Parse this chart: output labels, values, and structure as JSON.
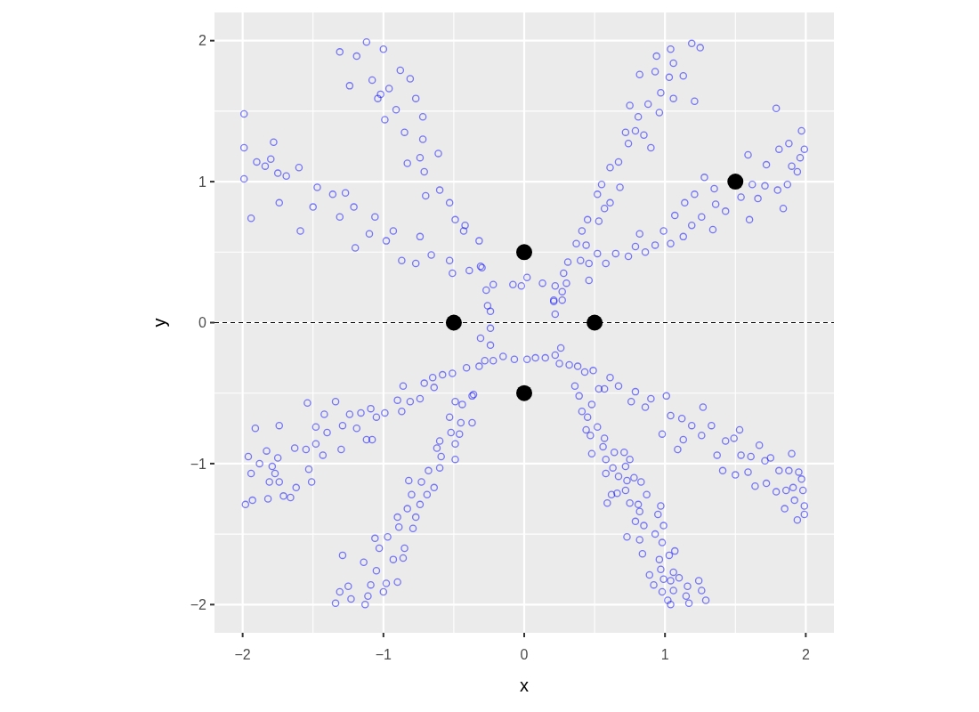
{
  "chart_data": {
    "type": "scatter",
    "xlabel": "x",
    "ylabel": "y",
    "xlim": [
      -2.2,
      2.2
    ],
    "ylim": [
      -2.2,
      2.2
    ],
    "xticks": [
      {
        "value": -2,
        "label": "−2"
      },
      {
        "value": -1.5,
        "label": null
      },
      {
        "value": -1,
        "label": "−1"
      },
      {
        "value": -0.5,
        "label": null
      },
      0,
      {
        "value": 0.5,
        "label": null
      },
      1,
      {
        "value": 1.5,
        "label": null
      },
      2
    ],
    "yticks": [
      {
        "value": -2,
        "label": "−2"
      },
      {
        "value": -1.5,
        "label": null
      },
      {
        "value": -1,
        "label": "−1"
      },
      {
        "value": -0.5,
        "label": null
      },
      0,
      {
        "value": 0.5,
        "label": null
      },
      1,
      {
        "value": 1.5,
        "label": null
      },
      2
    ],
    "grid": true,
    "marker": "circle",
    "ref_lines": [
      {
        "axis": "y",
        "value": 0,
        "color": "#000000",
        "line_style": "dashed"
      }
    ],
    "series": [
      {
        "color": "#0000ff",
        "x": [
          -1.12,
          -1.31,
          -1.19,
          -1.0,
          -0.88,
          -0.81,
          -1.24,
          -1.04,
          -0.99,
          -0.91,
          -0.77,
          -0.72,
          -0.85,
          -0.72,
          -0.74,
          -0.83,
          -0.61,
          -0.71,
          -0.6,
          -0.7,
          -0.53,
          -0.49,
          -0.42,
          -0.43,
          -0.32,
          -0.31,
          -0.27,
          -0.24,
          -1.08,
          -0.96,
          -1.02,
          -1.99,
          -1.99,
          -1.78,
          -1.99,
          -1.84,
          -1.69,
          -1.94,
          -1.74,
          -1.6,
          -1.59,
          -1.47,
          -1.5,
          -1.36,
          -1.27,
          -1.31,
          -1.21,
          -1.2,
          -1.06,
          -1.1,
          -0.93,
          -0.98,
          -0.87,
          -0.74,
          -0.77,
          -0.66,
          -0.53,
          -0.51,
          -0.39,
          -0.3,
          -0.22,
          -0.26,
          -1.8,
          -1.75,
          -1.9,
          -0.08,
          0.02,
          0.13,
          0.22,
          0.21,
          0.27,
          -0.02,
          1.19,
          1.25,
          1.04,
          0.94,
          1.06,
          0.82,
          0.93,
          1.03,
          1.13,
          0.97,
          1.06,
          1.21,
          0.75,
          0.88,
          0.96,
          0.81,
          0.72,
          0.79,
          0.85,
          0.74,
          0.9,
          0.61,
          0.67,
          0.55,
          0.68,
          0.52,
          0.61,
          0.57,
          0.45,
          0.53,
          0.41,
          0.37,
          0.44,
          0.31,
          0.4,
          0.46,
          0.28,
          0.46,
          0.3,
          0.27,
          0.21,
          0.22,
          0.52,
          0.58,
          0.65,
          0.74,
          0.79,
          0.82,
          0.86,
          0.93,
          0.99,
          1.04,
          1.07,
          1.14,
          1.13,
          1.21,
          1.19,
          1.28,
          1.26,
          1.34,
          1.35,
          1.36,
          1.43,
          1.54,
          1.59,
          1.6,
          1.62,
          1.66,
          1.71,
          1.72,
          1.8,
          1.79,
          1.84,
          1.81,
          1.87,
          1.88,
          1.9,
          1.94,
          1.97,
          1.99,
          1.96,
          -1.96,
          -1.98,
          -1.93,
          -1.94,
          -1.91,
          -1.88,
          -1.83,
          -1.82,
          -1.81,
          -1.75,
          -1.74,
          -1.74,
          -1.71,
          -1.66,
          -1.63,
          -1.62,
          -1.55,
          -1.54,
          -1.53,
          -1.51,
          -1.48,
          -1.48,
          -1.43,
          -1.42,
          -1.4,
          -1.34,
          -1.3,
          -1.29,
          -1.24,
          -1.19,
          -1.16,
          -1.12,
          -1.08,
          -1.09,
          -1.05,
          -0.99,
          -0.9,
          -0.86,
          -0.87,
          -0.81,
          -0.74,
          -0.71,
          -0.65,
          -0.64,
          -0.58,
          -0.51,
          -0.41,
          -0.32,
          -0.28,
          -0.22,
          -0.15,
          -0.07,
          -1.79,
          -1.77,
          -0.24,
          -0.31,
          -0.24,
          -1.34,
          -1.31,
          -1.25,
          -1.23,
          -1.13,
          -1.11,
          -1.29,
          -1.14,
          -1.09,
          -1.05,
          -1.06,
          -1.03,
          -1.0,
          -0.98,
          -0.93,
          -0.9,
          -0.97,
          -0.89,
          -0.86,
          -0.85,
          -0.9,
          -0.79,
          -0.83,
          -0.77,
          -0.82,
          -0.8,
          -0.74,
          -0.73,
          -0.69,
          -0.68,
          -0.64,
          -0.62,
          -0.6,
          -0.59,
          -0.6,
          -0.52,
          -0.49,
          -0.49,
          -0.53,
          -0.45,
          -0.46,
          -0.37,
          -0.49,
          -0.44,
          -0.37,
          -0.36,
          0.02,
          0.08,
          0.15,
          0.22,
          0.26,
          0.25,
          0.32,
          0.38,
          0.43,
          0.49,
          0.53,
          0.57,
          0.61,
          0.67,
          0.76,
          0.79,
          0.86,
          0.9,
          0.98,
          1.01,
          1.04,
          1.09,
          1.13,
          1.12,
          1.19,
          1.27,
          1.26,
          1.33,
          1.37,
          1.41,
          1.43,
          1.49,
          1.5,
          1.53,
          1.54,
          1.59,
          1.61,
          1.64,
          1.67,
          1.71,
          1.75,
          1.72,
          1.79,
          1.81,
          1.85,
          1.86,
          1.88,
          1.9,
          1.91,
          1.92,
          1.94,
          1.95,
          1.97,
          1.98,
          1.99,
          1.99,
          0.36,
          0.39,
          0.41,
          0.45,
          0.48,
          0.52,
          0.44,
          0.47,
          0.48,
          0.56,
          0.57,
          0.58,
          0.58,
          0.64,
          0.63,
          0.67,
          0.71,
          0.75,
          0.72,
          0.59,
          0.62,
          0.66,
          0.72,
          0.73,
          0.78,
          0.83,
          0.75,
          0.81,
          0.87,
          0.73,
          0.82,
          0.79,
          0.85,
          0.97,
          0.95,
          0.99,
          0.82,
          0.93,
          0.98,
          0.84,
          0.96,
          1.03,
          1.07,
          0.89,
          0.97,
          0.92,
          1.06,
          1.1,
          0.99,
          1.04,
          0.98,
          1.06,
          1.02,
          1.04,
          1.15,
          1.17,
          1.16,
          1.24,
          1.26,
          1.29
        ],
        "values": [
          1.99,
          1.92,
          1.89,
          1.94,
          1.79,
          1.73,
          1.68,
          1.59,
          1.44,
          1.51,
          1.59,
          1.46,
          1.35,
          1.3,
          1.17,
          1.13,
          1.2,
          1.07,
          0.94,
          0.9,
          0.85,
          0.73,
          0.69,
          0.65,
          0.58,
          0.4,
          0.23,
          0.08,
          1.72,
          1.66,
          1.62,
          1.48,
          1.24,
          1.28,
          1.02,
          1.11,
          1.04,
          0.74,
          0.85,
          1.1,
          0.65,
          0.96,
          0.82,
          0.91,
          0.92,
          0.75,
          0.82,
          0.53,
          0.75,
          0.63,
          0.65,
          0.58,
          0.44,
          0.61,
          0.42,
          0.48,
          0.44,
          0.35,
          0.37,
          0.39,
          0.27,
          0.12,
          1.16,
          1.06,
          1.14,
          0.27,
          0.32,
          0.28,
          0.26,
          0.16,
          0.16,
          0.26,
          1.98,
          1.95,
          1.94,
          1.89,
          1.84,
          1.76,
          1.78,
          1.74,
          1.75,
          1.63,
          1.59,
          1.57,
          1.54,
          1.55,
          1.49,
          1.46,
          1.35,
          1.36,
          1.33,
          1.27,
          1.24,
          1.1,
          1.14,
          0.98,
          0.96,
          0.91,
          0.85,
          0.81,
          0.73,
          0.72,
          0.65,
          0.56,
          0.55,
          0.43,
          0.44,
          0.42,
          0.35,
          0.3,
          0.28,
          0.22,
          0.15,
          0.06,
          0.49,
          0.42,
          0.49,
          0.47,
          0.54,
          0.63,
          0.5,
          0.55,
          0.65,
          0.56,
          0.76,
          0.85,
          0.61,
          0.91,
          0.69,
          1.03,
          0.75,
          0.66,
          0.95,
          0.84,
          0.79,
          0.89,
          1.19,
          0.73,
          0.98,
          0.88,
          0.97,
          1.12,
          0.94,
          1.52,
          0.81,
          1.23,
          0.98,
          1.27,
          1.11,
          1.07,
          1.36,
          1.23,
          1.17,
          -0.95,
          -1.29,
          -1.26,
          -1.07,
          -0.75,
          -1.0,
          -0.91,
          -1.25,
          -1.13,
          -0.96,
          -0.73,
          -1.13,
          -1.23,
          -1.24,
          -0.89,
          -1.17,
          -0.9,
          -0.57,
          -1.04,
          -1.13,
          -0.86,
          -0.74,
          -0.94,
          -0.65,
          -0.78,
          -0.56,
          -0.9,
          -0.73,
          -0.65,
          -0.75,
          -0.64,
          -0.83,
          -0.83,
          -0.61,
          -0.67,
          -0.64,
          -0.55,
          -0.45,
          -0.63,
          -0.56,
          -0.54,
          -0.43,
          -0.39,
          -0.46,
          -0.37,
          -0.36,
          -0.32,
          -0.31,
          -0.27,
          -0.27,
          -0.24,
          -0.26,
          -1.02,
          -1.07,
          -0.04,
          -0.11,
          -0.16,
          -1.99,
          -1.91,
          -1.87,
          -1.96,
          -2.0,
          -1.94,
          -1.65,
          -1.7,
          -1.86,
          -1.76,
          -1.53,
          -1.6,
          -1.91,
          -1.85,
          -1.68,
          -1.84,
          -1.52,
          -1.45,
          -1.67,
          -1.6,
          -1.38,
          -1.46,
          -1.32,
          -1.38,
          -1.12,
          -1.22,
          -1.29,
          -1.13,
          -1.22,
          -1.05,
          -1.17,
          -0.89,
          -1.03,
          -0.95,
          -0.84,
          -0.78,
          -0.86,
          -0.97,
          -0.67,
          -0.71,
          -0.79,
          -0.71,
          -0.56,
          -0.58,
          -0.52,
          -0.51,
          -0.26,
          -0.25,
          -0.25,
          -0.23,
          -0.18,
          -0.29,
          -0.3,
          -0.31,
          -0.35,
          -0.34,
          -0.47,
          -0.47,
          -0.39,
          -0.45,
          -0.56,
          -0.49,
          -0.6,
          -0.54,
          -0.79,
          -0.52,
          -0.66,
          -0.9,
          -0.83,
          -0.68,
          -0.73,
          -0.6,
          -0.8,
          -0.73,
          -0.94,
          -1.05,
          -0.84,
          -0.82,
          -1.08,
          -0.76,
          -0.94,
          -1.06,
          -0.95,
          -1.16,
          -0.87,
          -0.98,
          -0.96,
          -1.14,
          -1.2,
          -1.05,
          -1.32,
          -1.19,
          -1.05,
          -0.93,
          -1.17,
          -1.26,
          -1.4,
          -1.06,
          -1.11,
          -1.19,
          -1.3,
          -1.36,
          -0.45,
          -0.52,
          -0.63,
          -0.67,
          -0.58,
          -0.74,
          -0.76,
          -0.8,
          -0.93,
          -0.88,
          -0.82,
          -0.97,
          -1.07,
          -0.92,
          -1.03,
          -1.09,
          -0.92,
          -0.97,
          -1.02,
          -1.28,
          -1.22,
          -1.21,
          -1.19,
          -1.12,
          -1.1,
          -1.13,
          -1.28,
          -1.29,
          -1.22,
          -1.52,
          -1.34,
          -1.41,
          -1.44,
          -1.3,
          -1.36,
          -1.44,
          -1.54,
          -1.5,
          -1.56,
          -1.64,
          -1.68,
          -1.65,
          -1.62,
          -1.79,
          -1.75,
          -1.86,
          -1.77,
          -1.81,
          -1.82,
          -1.83,
          -1.91,
          -1.9,
          -1.97,
          -2.0,
          -1.94,
          -1.99,
          -1.87,
          -1.83,
          -1.9,
          -1.97
        ]
      },
      {
        "color": "#000000",
        "x": [
          -0.5,
          0.5,
          0,
          0,
          1.5
        ],
        "values": [
          0,
          0,
          0.5,
          -0.5,
          1
        ]
      }
    ]
  }
}
